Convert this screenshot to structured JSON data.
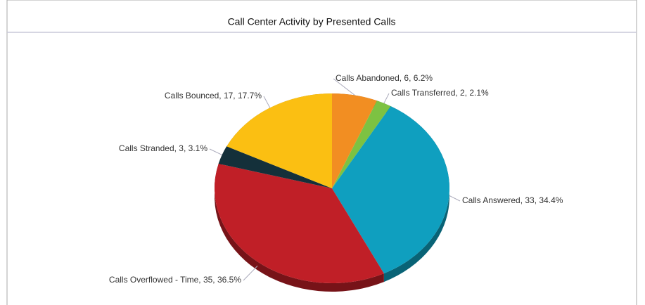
{
  "chart_data": {
    "type": "pie",
    "title": "Call Center Activity by Presented Calls",
    "values": [
      6,
      2,
      33,
      35,
      3,
      17
    ],
    "value_labels": [
      "Calls Abandoned, 6, 6.2%",
      "Calls Transferred, 2, 2.1%",
      "Calls Answered, 33, 34.4%",
      "Calls Overflowed - Time, 35, 36.5%",
      "Calls Stranded, 3, 3.1%",
      "Calls Bounced, 17, 17.7%"
    ],
    "colors": [
      "#f28e22",
      "#7dc242",
      "#0f9fbf",
      "#c01f27",
      "#14303a",
      "#fbbf12"
    ]
  }
}
